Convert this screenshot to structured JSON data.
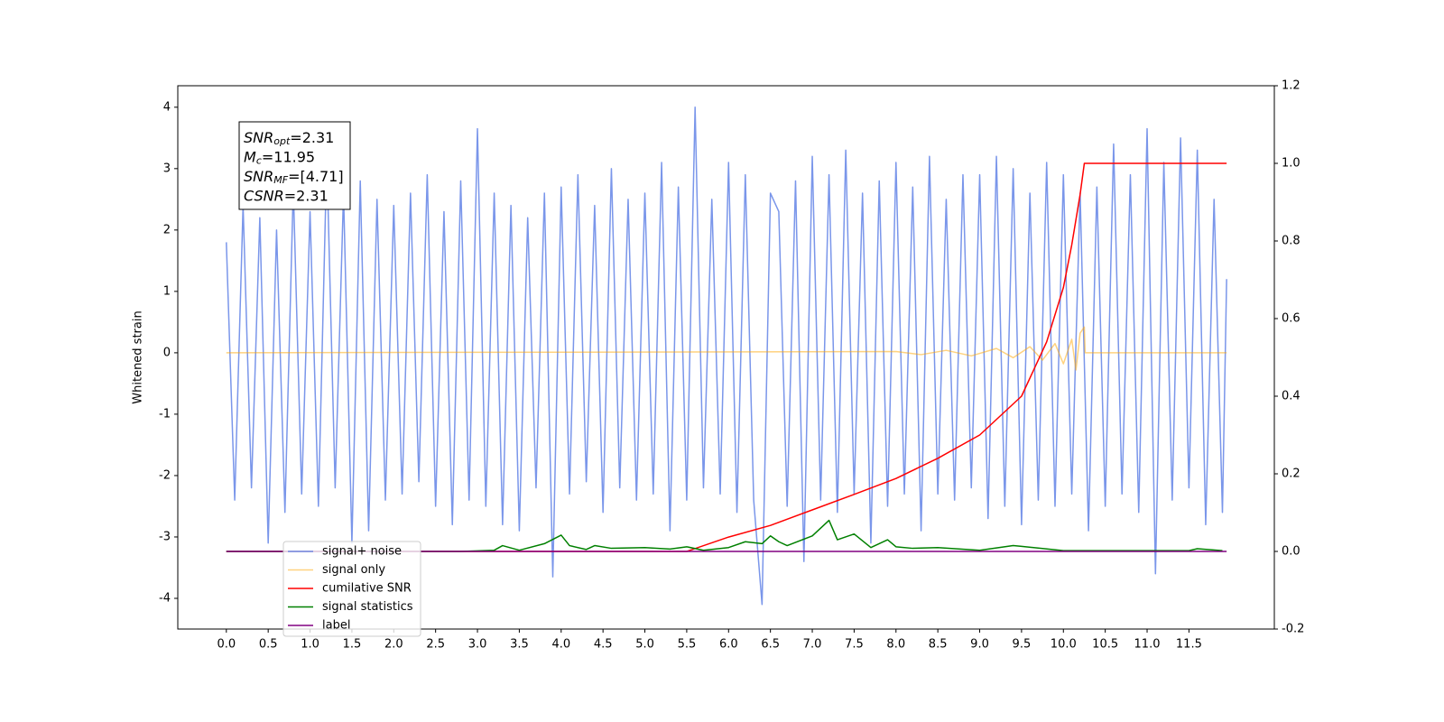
{
  "chart_data": {
    "type": "line",
    "ylabel": "Whitened strain",
    "xlim": [
      -0.58,
      12.52
    ],
    "ylim": [
      -4.5,
      4.35
    ],
    "y2lim": [
      -0.2,
      1.2
    ],
    "xticks": [
      {
        "value": 0,
        "label": "0.0"
      },
      0.5,
      {
        "value": 1,
        "label": "1.0"
      },
      1.5,
      {
        "value": 2,
        "label": "2.0"
      },
      2.5,
      {
        "value": 3,
        "label": "3.0"
      },
      3.5,
      {
        "value": 4,
        "label": "4.0"
      },
      4.5,
      {
        "value": 5,
        "label": "5.0"
      },
      5.5,
      {
        "value": 6,
        "label": "6.0"
      },
      6.5,
      {
        "value": 7,
        "label": "7.0"
      },
      7.5,
      {
        "value": 8,
        "label": "8.0"
      },
      8.5,
      {
        "value": 9,
        "label": "9.0"
      },
      9.5,
      {
        "value": 10,
        "label": "10.0"
      },
      10.5,
      {
        "value": 11,
        "label": "11.0"
      },
      11.5
    ],
    "yticks": [
      -4,
      -3,
      -2,
      -1,
      0,
      1,
      2,
      3,
      4
    ],
    "y2ticks": [
      -0.2,
      {
        "value": 0,
        "label": "0.0"
      },
      0.2,
      0.4,
      0.6,
      0.8,
      {
        "value": 1,
        "label": "1.0"
      },
      1.2
    ],
    "legend": "lower left",
    "annotation": [
      {
        "main": "SNR",
        "sub": "opt",
        "rest": "=2.31"
      },
      {
        "main": "M",
        "sub": "c",
        "rest": "=11.95"
      },
      {
        "main": "SNR",
        "sub": "MF",
        "rest": "=[4.71]"
      },
      {
        "main": "CSNR",
        "sub": "",
        "rest": "=2.31"
      }
    ],
    "series": [
      {
        "name": "signal+ noise",
        "color": "#4169e1",
        "opacity": 0.7,
        "axis": "y",
        "x": [
          0,
          0.1,
          0.2,
          0.3,
          0.4,
          0.5,
          0.6,
          0.7,
          0.8,
          0.9,
          1,
          1.1,
          1.2,
          1.3,
          1.4,
          1.5,
          1.6,
          1.7,
          1.8,
          1.9,
          2,
          2.1,
          2.2,
          2.3,
          2.4,
          2.5,
          2.6,
          2.7,
          2.8,
          2.9,
          3,
          3.1,
          3.2,
          3.3,
          3.4,
          3.5,
          3.6,
          3.7,
          3.8,
          3.9,
          4,
          4.1,
          4.2,
          4.3,
          4.4,
          4.5,
          4.6,
          4.7,
          4.8,
          4.9,
          5,
          5.1,
          5.2,
          5.3,
          5.4,
          5.5,
          5.6,
          5.7,
          5.8,
          5.9,
          6,
          6.1,
          6.2,
          6.3,
          6.4,
          6.5,
          6.6,
          6.7,
          6.8,
          6.9,
          7,
          7.1,
          7.2,
          7.3,
          7.4,
          7.5,
          7.6,
          7.7,
          7.8,
          7.9,
          8,
          8.1,
          8.2,
          8.3,
          8.4,
          8.5,
          8.6,
          8.7,
          8.8,
          8.9,
          9,
          9.1,
          9.2,
          9.3,
          9.4,
          9.5,
          9.6,
          9.7,
          9.8,
          9.9,
          10,
          10.1,
          10.2,
          10.3,
          10.4,
          10.5,
          10.6,
          10.7,
          10.8,
          10.9,
          11,
          11.1,
          11.2,
          11.3,
          11.4,
          11.5,
          11.6,
          11.7,
          11.8,
          11.9,
          11.95
        ],
        "values": [
          1.8,
          -2.4,
          2.4,
          -2.2,
          2.2,
          -3.1,
          2.0,
          -2.6,
          2.7,
          -2.3,
          2.3,
          -2.5,
          3.2,
          -2.2,
          2.6,
          -3.1,
          2.8,
          -2.9,
          2.5,
          -2.4,
          2.4,
          -2.3,
          2.6,
          -2.1,
          2.9,
          -2.5,
          2.3,
          -2.8,
          2.8,
          -2.4,
          3.65,
          -2.5,
          2.6,
          -2.8,
          2.4,
          -2.9,
          2.2,
          -2.2,
          2.6,
          -3.65,
          2.7,
          -2.3,
          2.9,
          -2.1,
          2.4,
          -2.6,
          3.0,
          -2.2,
          2.5,
          -2.4,
          2.6,
          -2.3,
          3.1,
          -2.9,
          2.7,
          -2.4,
          4.0,
          -2.2,
          2.5,
          -2.3,
          3.1,
          -2.6,
          2.9,
          -2.4,
          -4.1,
          2.6,
          2.3,
          -2.5,
          2.8,
          -3.4,
          3.2,
          -2.4,
          2.9,
          -2.6,
          3.3,
          -2.3,
          2.6,
          -3.1,
          2.8,
          -2.5,
          3.1,
          -2.3,
          2.7,
          -2.9,
          3.2,
          -2.3,
          2.5,
          -2.4,
          2.9,
          -2.2,
          2.9,
          -2.7,
          3.2,
          -2.5,
          3.0,
          -2.8,
          2.6,
          -2.4,
          3.1,
          -2.5,
          2.9,
          -2.3,
          2.6,
          -2.9,
          2.7,
          -2.5,
          3.4,
          -2.3,
          2.9,
          -2.6,
          3.65,
          -3.6,
          3.1,
          -2.4,
          3.5,
          -2.2,
          3.3,
          -2.8,
          2.5,
          -2.6,
          1.2
        ]
      },
      {
        "name": "signal only",
        "color": "#ffa500",
        "opacity": 0.5,
        "axis": "y",
        "x": [
          0,
          8.0,
          8.3,
          8.6,
          8.9,
          9.2,
          9.4,
          9.6,
          9.75,
          9.9,
          10.0,
          10.1,
          10.15,
          10.2,
          10.25,
          10.26,
          11.95
        ],
        "values": [
          0,
          0.02,
          -0.03,
          0.04,
          -0.05,
          0.07,
          -0.08,
          0.1,
          -0.12,
          0.15,
          -0.18,
          0.22,
          -0.28,
          0.32,
          0.42,
          0,
          0
        ]
      },
      {
        "name": "cumilative SNR",
        "color": "#ff0000",
        "opacity": 1,
        "axis": "y2",
        "x": [
          0,
          5.5,
          6.0,
          6.5,
          7.0,
          7.5,
          8.0,
          8.5,
          9.0,
          9.5,
          9.8,
          10.0,
          10.1,
          10.2,
          10.25,
          11.95
        ],
        "values": [
          0,
          0,
          0.037,
          0.067,
          0.107,
          0.147,
          0.188,
          0.24,
          0.3,
          0.4,
          0.54,
          0.68,
          0.79,
          0.92,
          1.0,
          1.0
        ]
      },
      {
        "name": "signal statistics",
        "color": "#008000",
        "opacity": 1,
        "axis": "y2",
        "x": [
          0,
          2.8,
          3.2,
          3.3,
          3.5,
          3.8,
          4.0,
          4.1,
          4.3,
          4.4,
          4.6,
          5.0,
          5.3,
          5.5,
          5.7,
          6.0,
          6.2,
          6.4,
          6.5,
          6.6,
          6.7,
          7.0,
          7.2,
          7.3,
          7.5,
          7.7,
          7.9,
          8.0,
          8.2,
          8.5,
          9.0,
          9.4,
          9.5,
          10.0,
          11.5,
          11.6,
          11.9
        ],
        "values": [
          0,
          0,
          0.003,
          0.015,
          0.003,
          0.02,
          0.042,
          0.015,
          0.005,
          0.015,
          0.008,
          0.01,
          0.006,
          0.012,
          0.003,
          0.01,
          0.025,
          0.02,
          0.04,
          0.025,
          0.015,
          0.04,
          0.08,
          0.03,
          0.045,
          0.01,
          0.03,
          0.012,
          0.008,
          0.01,
          0.003,
          0.015,
          0.013,
          0.002,
          0.002,
          0.007,
          0.002
        ]
      },
      {
        "name": "label",
        "color": "#800080",
        "opacity": 1,
        "axis": "y2",
        "x": [
          0,
          11.95
        ],
        "values": [
          0,
          0
        ]
      }
    ]
  }
}
